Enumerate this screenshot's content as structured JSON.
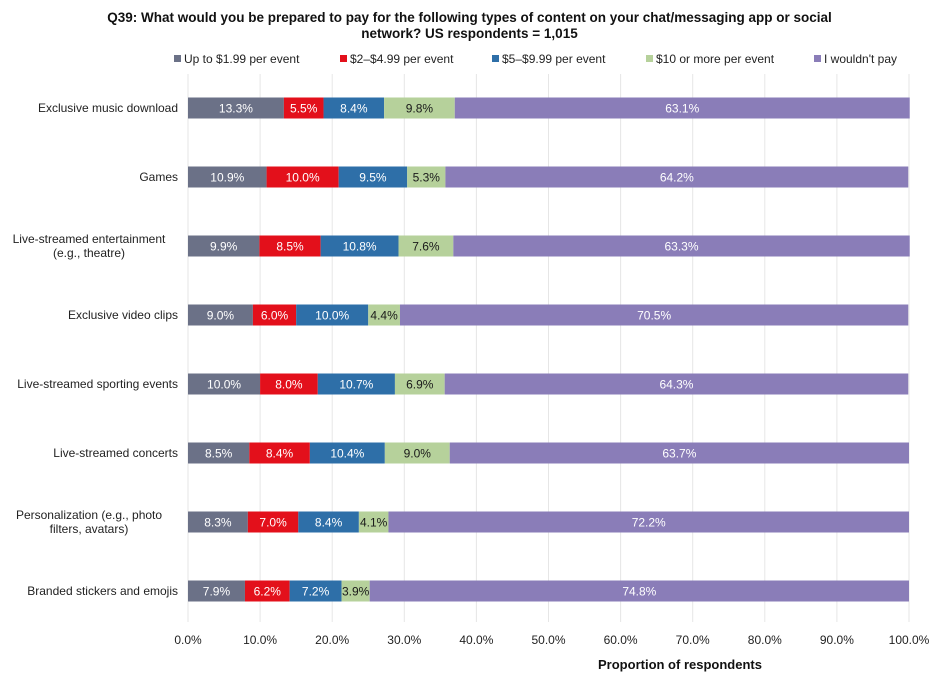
{
  "chart_data": {
    "type": "bar",
    "orientation": "horizontal",
    "stacked": true,
    "title_lines": [
      "Q39: What would you be prepared to pay for the following  types of content on your chat/messaging app or social",
      "network? US respondents = 1,015"
    ],
    "xlabel": "Proportion of respondents",
    "ylabel": "",
    "xlim": [
      0,
      100
    ],
    "xticks": [
      "0.0%",
      "10.0%",
      "20.0%",
      "30.0%",
      "40.0%",
      "50.0%",
      "60.0%",
      "70.0%",
      "80.0%",
      "90.0%",
      "100.0%"
    ],
    "grid": "vertical",
    "legend_position": "top",
    "categories": [
      [
        "Exclusive music download"
      ],
      [
        "Games"
      ],
      [
        "Live-streamed entertainment",
        "(e.g., theatre)"
      ],
      [
        "Exclusive video clips"
      ],
      [
        "Live-streamed sporting events"
      ],
      [
        "Live-streamed concerts"
      ],
      [
        "Personalization (e.g., photo",
        "filters, avatars)"
      ],
      [
        "Branded stickers and emojis"
      ]
    ],
    "series": [
      {
        "name": "Up to $1.99 per event",
        "color": "#6B7187",
        "label_color": "#ffffff",
        "values": [
          13.3,
          10.9,
          9.9,
          9.0,
          10.0,
          8.5,
          8.3,
          7.9
        ]
      },
      {
        "name": "$2–$4.99 per event",
        "color": "#E3101B",
        "label_color": "#ffffff",
        "values": [
          5.5,
          10.0,
          8.5,
          6.0,
          8.0,
          8.4,
          7.0,
          6.2
        ]
      },
      {
        "name": "$5–$9.99 per event",
        "color": "#2E6FA8",
        "label_color": "#ffffff",
        "values": [
          8.4,
          9.5,
          10.8,
          10.0,
          10.7,
          10.4,
          8.4,
          7.2
        ]
      },
      {
        "name": "$10 or more per event",
        "color": "#B6D19B",
        "label_color": "#1a1a1a",
        "values": [
          9.8,
          5.3,
          7.6,
          4.4,
          6.9,
          9.0,
          4.1,
          3.9
        ]
      },
      {
        "name": "I wouldn't pay",
        "color": "#8A7DB8",
        "label_color": "#ffffff",
        "values": [
          63.1,
          64.2,
          63.3,
          70.5,
          64.3,
          63.7,
          72.2,
          74.8
        ]
      }
    ],
    "data_labels": [
      [
        "13.3%",
        "10.9%",
        "9.9%",
        "9.0%",
        "10.0%",
        "8.5%",
        "8.3%",
        "7.9%"
      ],
      [
        "5.5%",
        "10.0%",
        "8.5%",
        "6.0%",
        "8.0%",
        "8.4%",
        "7.0%",
        "6.2%"
      ],
      [
        "8.4%",
        "9.5%",
        "10.8%",
        "10.0%",
        "10.7%",
        "10.4%",
        "8.4%",
        "7.2%"
      ],
      [
        "9.8%",
        "5.3%",
        "7.6%",
        "4.4%",
        "6.9%",
        "9.0%",
        "4.1%",
        "3.9%"
      ],
      [
        "63.1%",
        "64.2%",
        "63.3%",
        "70.5%",
        "64.3%",
        "63.7%",
        "72.2%",
        "74.8%"
      ]
    ],
    "gridline_color": "#E6E6E6"
  }
}
